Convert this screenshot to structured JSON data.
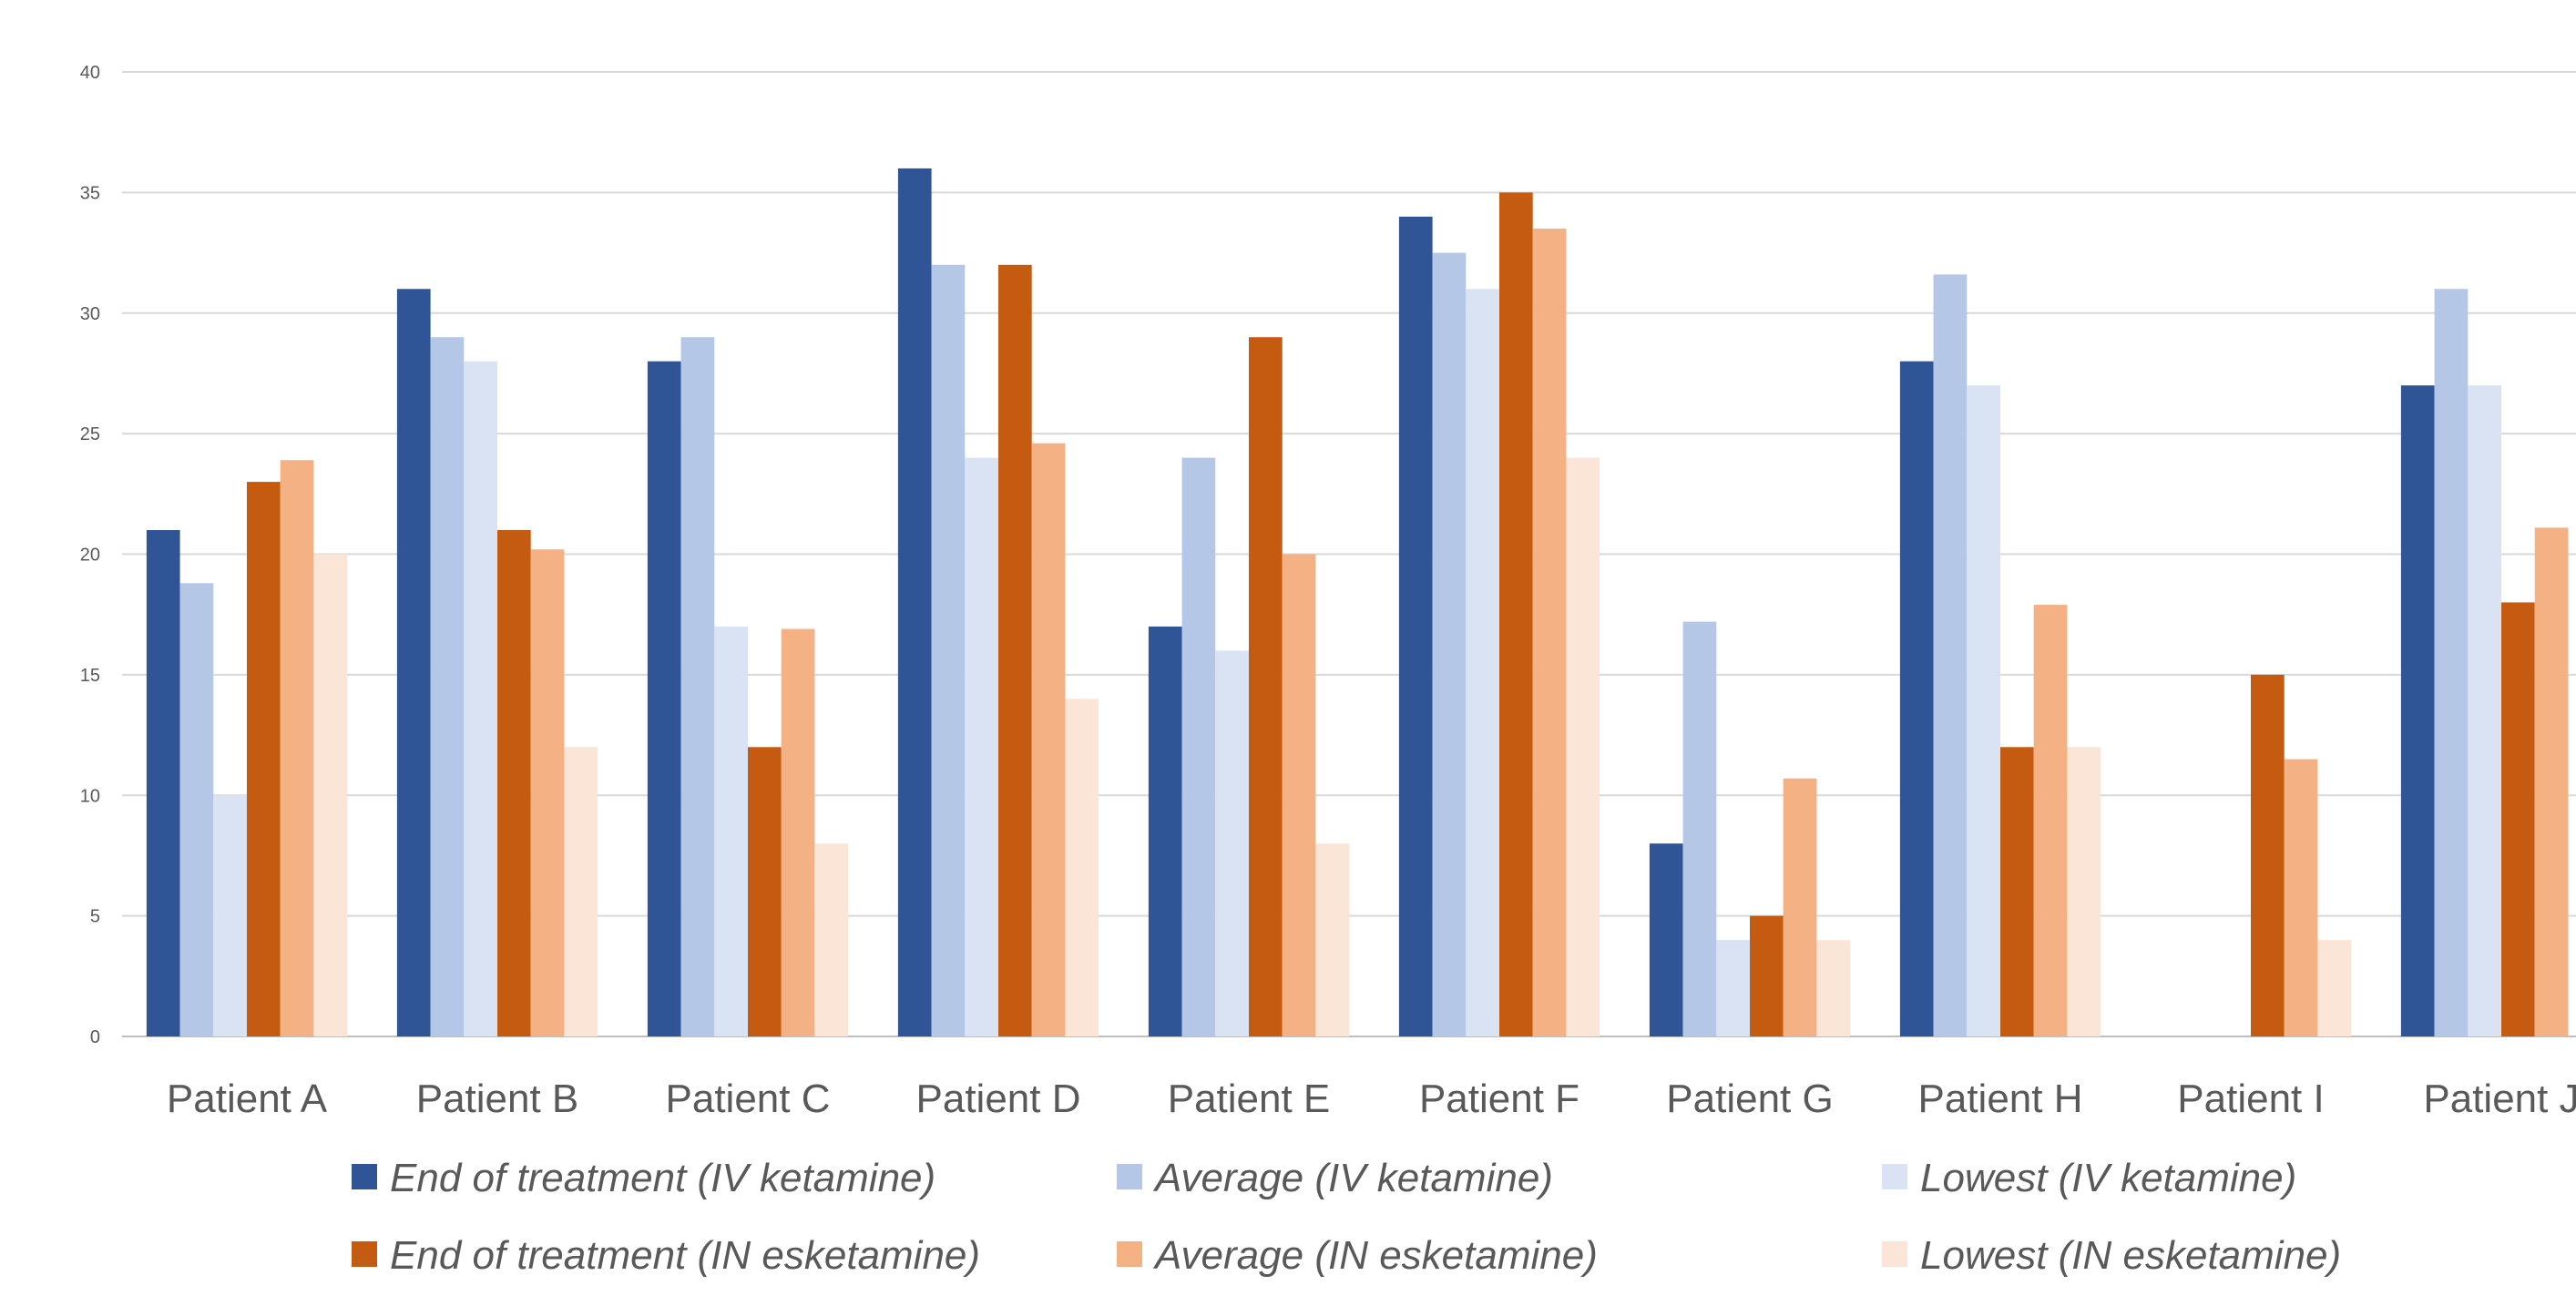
{
  "chart_data": {
    "type": "bar",
    "title": "",
    "xlabel": "",
    "ylabel": "",
    "ylim": [
      0,
      40
    ],
    "yticks": [
      "0",
      "5",
      "10",
      "15",
      "20",
      "25",
      "30",
      "35",
      "40"
    ],
    "grid": true,
    "legend_position": "bottom",
    "categories": [
      "Patient A",
      "Patient B",
      "Patient C",
      "Patient D",
      "Patient E",
      "Patient F",
      "Patient G",
      "Patient H",
      "Patient I",
      "Patient J"
    ],
    "series": [
      {
        "name": "End of treatment (IV ketamine)",
        "color": "#2F5597",
        "values": [
          21,
          31,
          28,
          36,
          17,
          34,
          8,
          28,
          null,
          27
        ]
      },
      {
        "name": "Average (IV ketamine)",
        "color": "#B4C7E7",
        "values": [
          18.8,
          29,
          29,
          32,
          24,
          32.5,
          17.2,
          31.6,
          null,
          31
        ]
      },
      {
        "name": "Lowest (IV ketamine)",
        "color": "#DAE3F3",
        "values": [
          10,
          28,
          17,
          24,
          16,
          31,
          4,
          27,
          null,
          27
        ]
      },
      {
        "name": "End of treatment (IN esketamine)",
        "color": "#C55A11",
        "values": [
          23,
          21,
          12,
          32,
          29,
          35,
          5,
          12,
          15,
          18
        ]
      },
      {
        "name": "Average (IN esketamine)",
        "color": "#F4B183",
        "values": [
          23.9,
          20.2,
          16.9,
          24.6,
          20,
          33.5,
          10.7,
          17.9,
          11.5,
          21.1
        ]
      },
      {
        "name": "Lowest (IN esketamine)",
        "color": "#FBE5D6",
        "values": [
          20,
          12,
          8,
          14,
          8,
          24,
          4,
          12,
          4,
          null
        ]
      }
    ]
  }
}
